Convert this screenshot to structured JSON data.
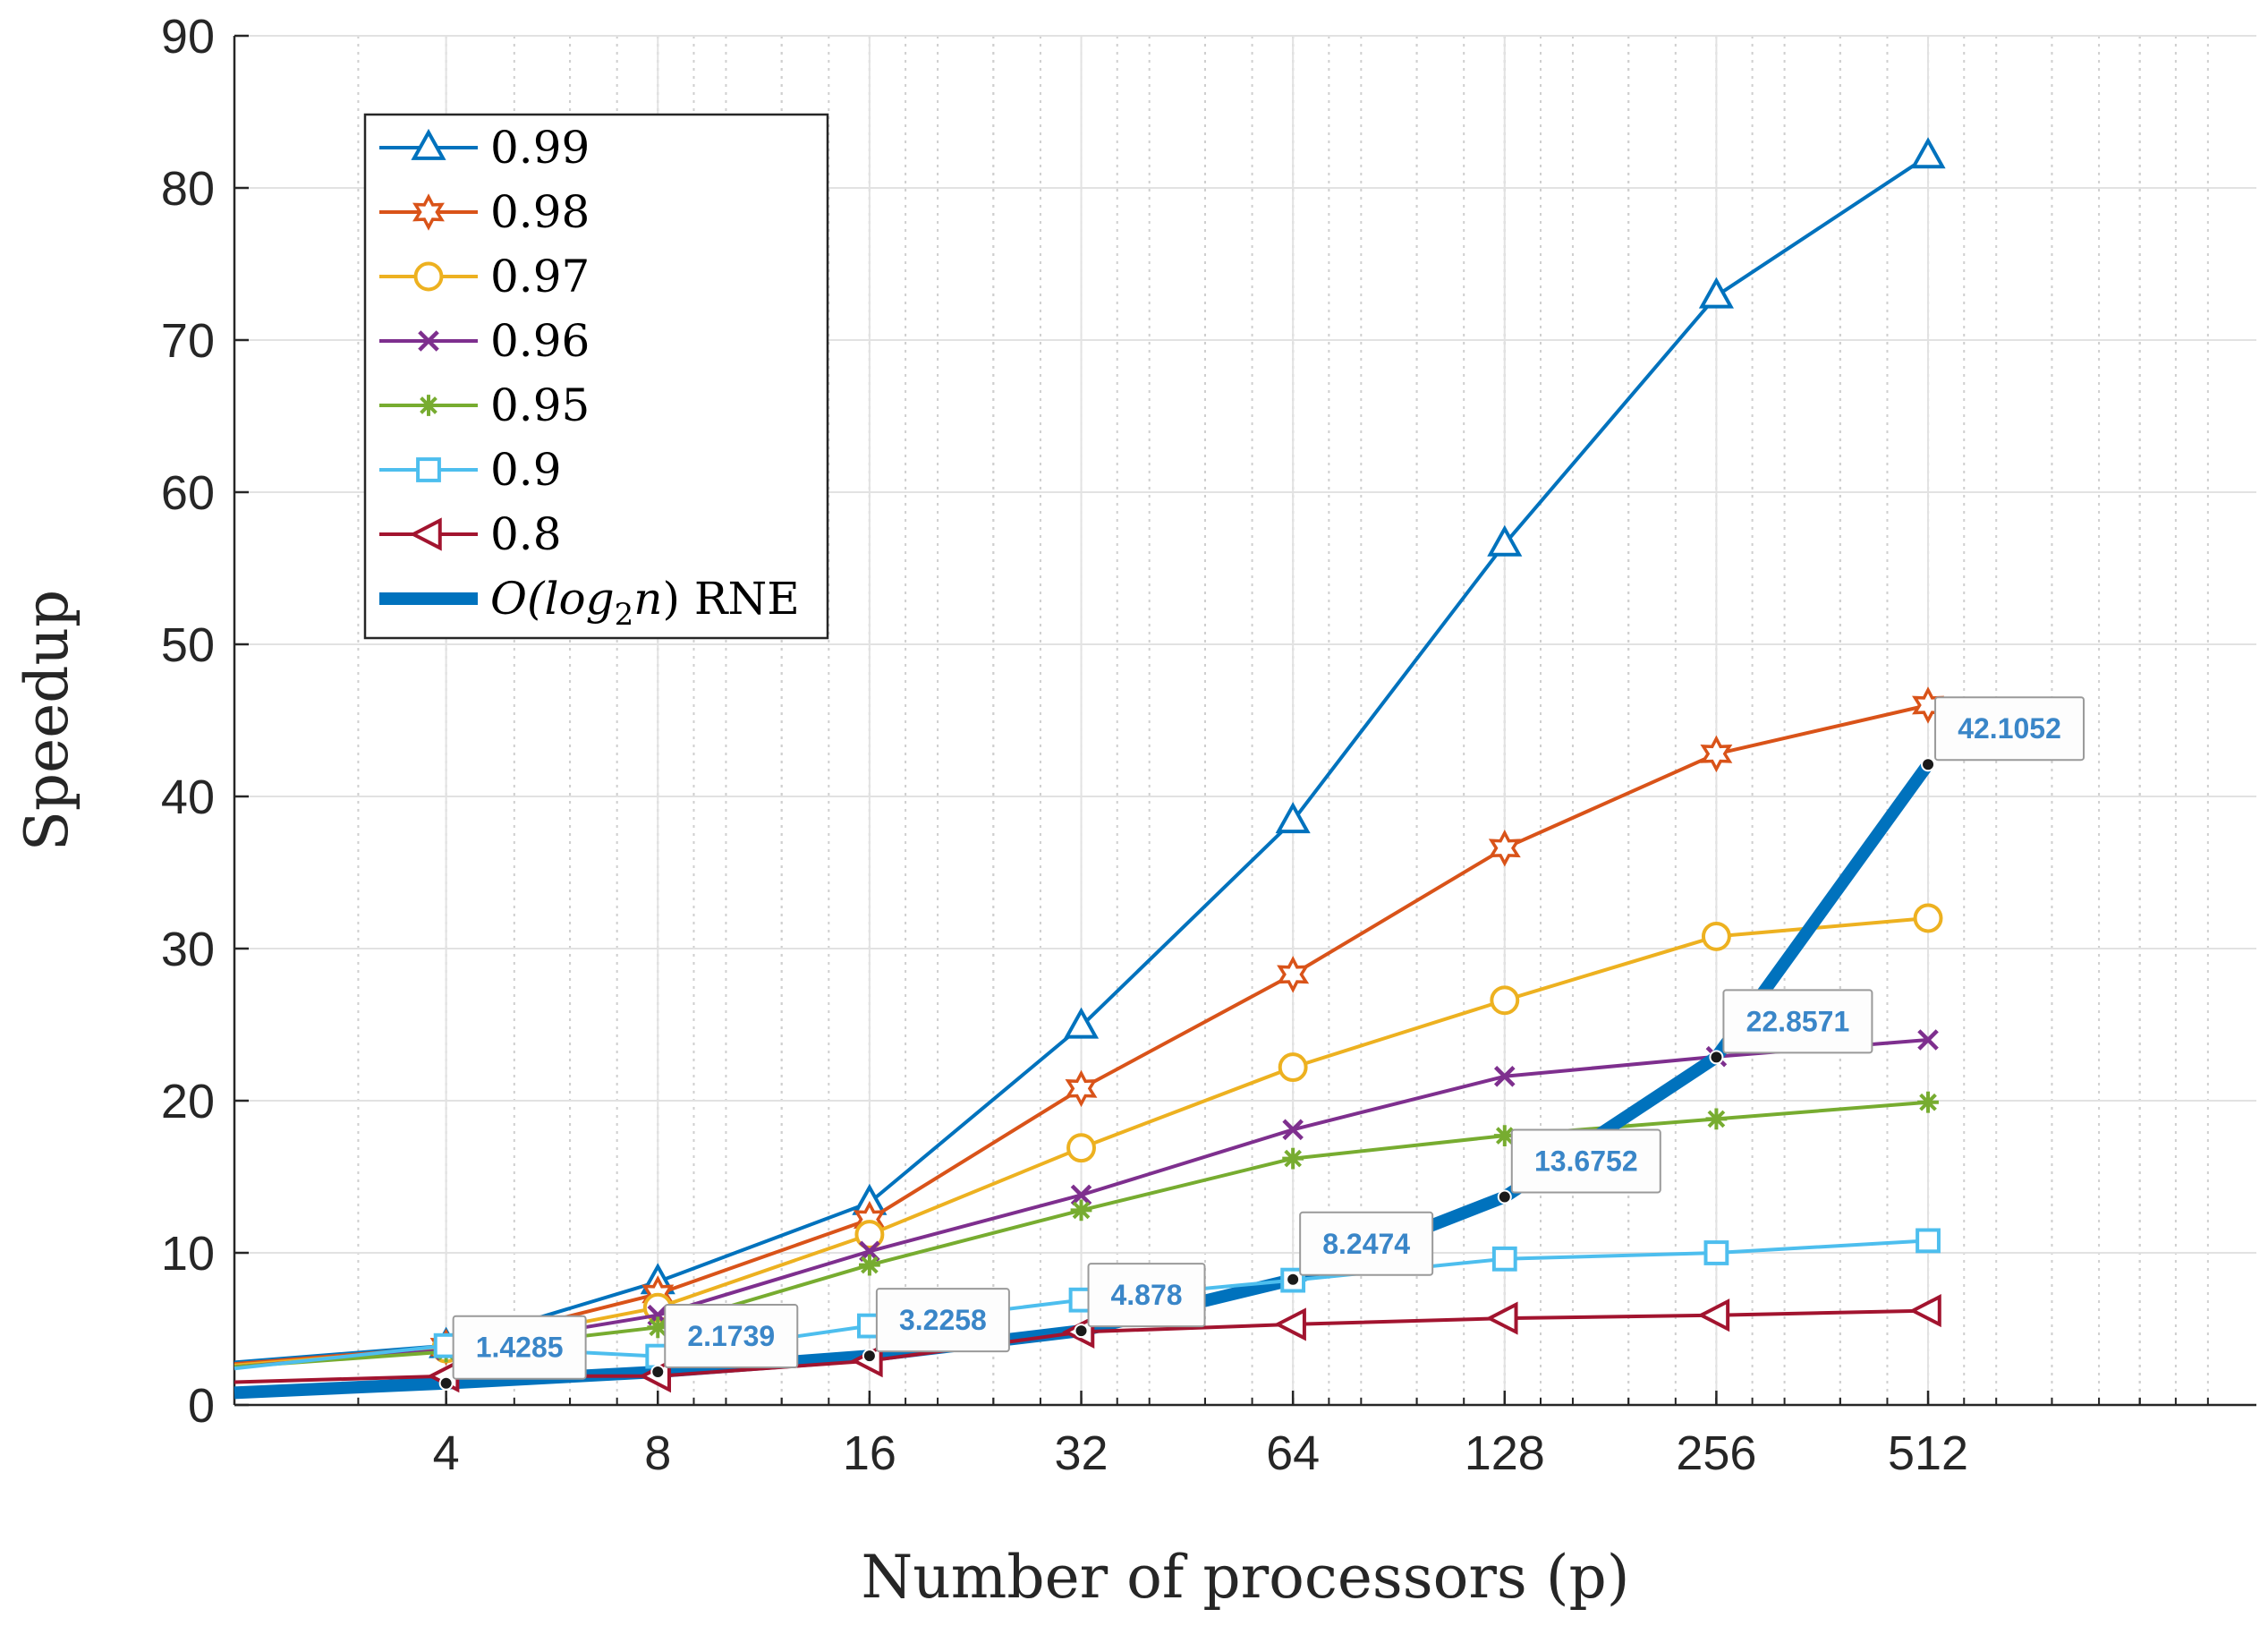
{
  "chart_data": {
    "type": "line",
    "title": "",
    "xlabel": "Number of processors (p)",
    "ylabel": "Speedup",
    "x_scale": "log2",
    "x": [
      2,
      4,
      8,
      16,
      32,
      64,
      128,
      256,
      512
    ],
    "x_tick_labels": [
      "4",
      "8",
      "16",
      "32",
      "64",
      "128",
      "256",
      "512"
    ],
    "y_ticks": [
      "0",
      "10",
      "20",
      "30",
      "40",
      "50",
      "60",
      "70",
      "80",
      "90"
    ],
    "xlim": [
      2,
      1500
    ],
    "ylim": [
      0,
      90
    ],
    "grid": true,
    "legend_position": "top-left",
    "series": [
      {
        "name": "0.99",
        "marker": "triangle-up",
        "color": "#0072BD",
        "width": 4,
        "values": [
          2.8,
          3.9,
          8.1,
          13.3,
          24.9,
          38.4,
          56.6,
          72.9,
          82.1
        ]
      },
      {
        "name": "0.98",
        "marker": "hexagram",
        "color": "#D95319",
        "width": 4,
        "values": [
          2.7,
          3.8,
          7.3,
          12.2,
          20.8,
          28.3,
          36.6,
          42.8,
          46.0
        ]
      },
      {
        "name": "0.97",
        "marker": "circle",
        "color": "#EDB120",
        "width": 4,
        "values": [
          2.6,
          3.7,
          6.4,
          11.2,
          16.9,
          22.2,
          26.6,
          30.8,
          32.0
        ]
      },
      {
        "name": "0.96",
        "marker": "x",
        "color": "#7E2F8E",
        "width": 4,
        "values": [
          2.5,
          3.6,
          5.9,
          10.1,
          13.8,
          18.1,
          21.6,
          22.9,
          24.0
        ]
      },
      {
        "name": "0.95",
        "marker": "asterisk",
        "color": "#77AC30",
        "width": 4,
        "values": [
          2.5,
          3.5,
          5.1,
          9.2,
          12.8,
          16.2,
          17.7,
          18.8,
          19.9
        ]
      },
      {
        "name": "0.9",
        "marker": "square",
        "color": "#4DBEEE",
        "width": 4,
        "values": [
          2.4,
          3.9,
          3.2,
          5.2,
          6.9,
          8.2,
          9.6,
          10.0,
          10.8
        ]
      },
      {
        "name": "0.8",
        "marker": "triangle-left",
        "color": "#A2142F",
        "width": 4,
        "values": [
          1.5,
          1.9,
          1.9,
          2.9,
          4.8,
          5.3,
          5.7,
          5.9,
          6.2
        ]
      },
      {
        "name": "O(log₂n) RNE",
        "marker": "none",
        "color": "#0072BD",
        "width": 14,
        "values": [
          0.8,
          1.4285,
          2.1739,
          3.2258,
          4.878,
          8.2474,
          13.6752,
          22.8571,
          42.1052
        ]
      }
    ],
    "legend": {
      "entries": [
        "0.99",
        "0.98",
        "0.97",
        "0.96",
        "0.95",
        "0.9",
        "0.8"
      ],
      "rne_prefix": "O(",
      "rne_log": "log",
      "rne_sub": "2",
      "rne_n": "n",
      "rne_suffix": ") RNE"
    },
    "annotations": [
      {
        "x": 4,
        "y": 1.4285,
        "label": "1.4285"
      },
      {
        "x": 8,
        "y": 2.1739,
        "label": "2.1739"
      },
      {
        "x": 16,
        "y": 3.2258,
        "label": "3.2258"
      },
      {
        "x": 32,
        "y": 4.878,
        "label": "4.878"
      },
      {
        "x": 64,
        "y": 8.2474,
        "label": "8.2474"
      },
      {
        "x": 128,
        "y": 13.6752,
        "label": "13.6752"
      },
      {
        "x": 256,
        "y": 22.8571,
        "label": "22.8571"
      },
      {
        "x": 512,
        "y": 42.1052,
        "label": "42.1052"
      }
    ]
  }
}
